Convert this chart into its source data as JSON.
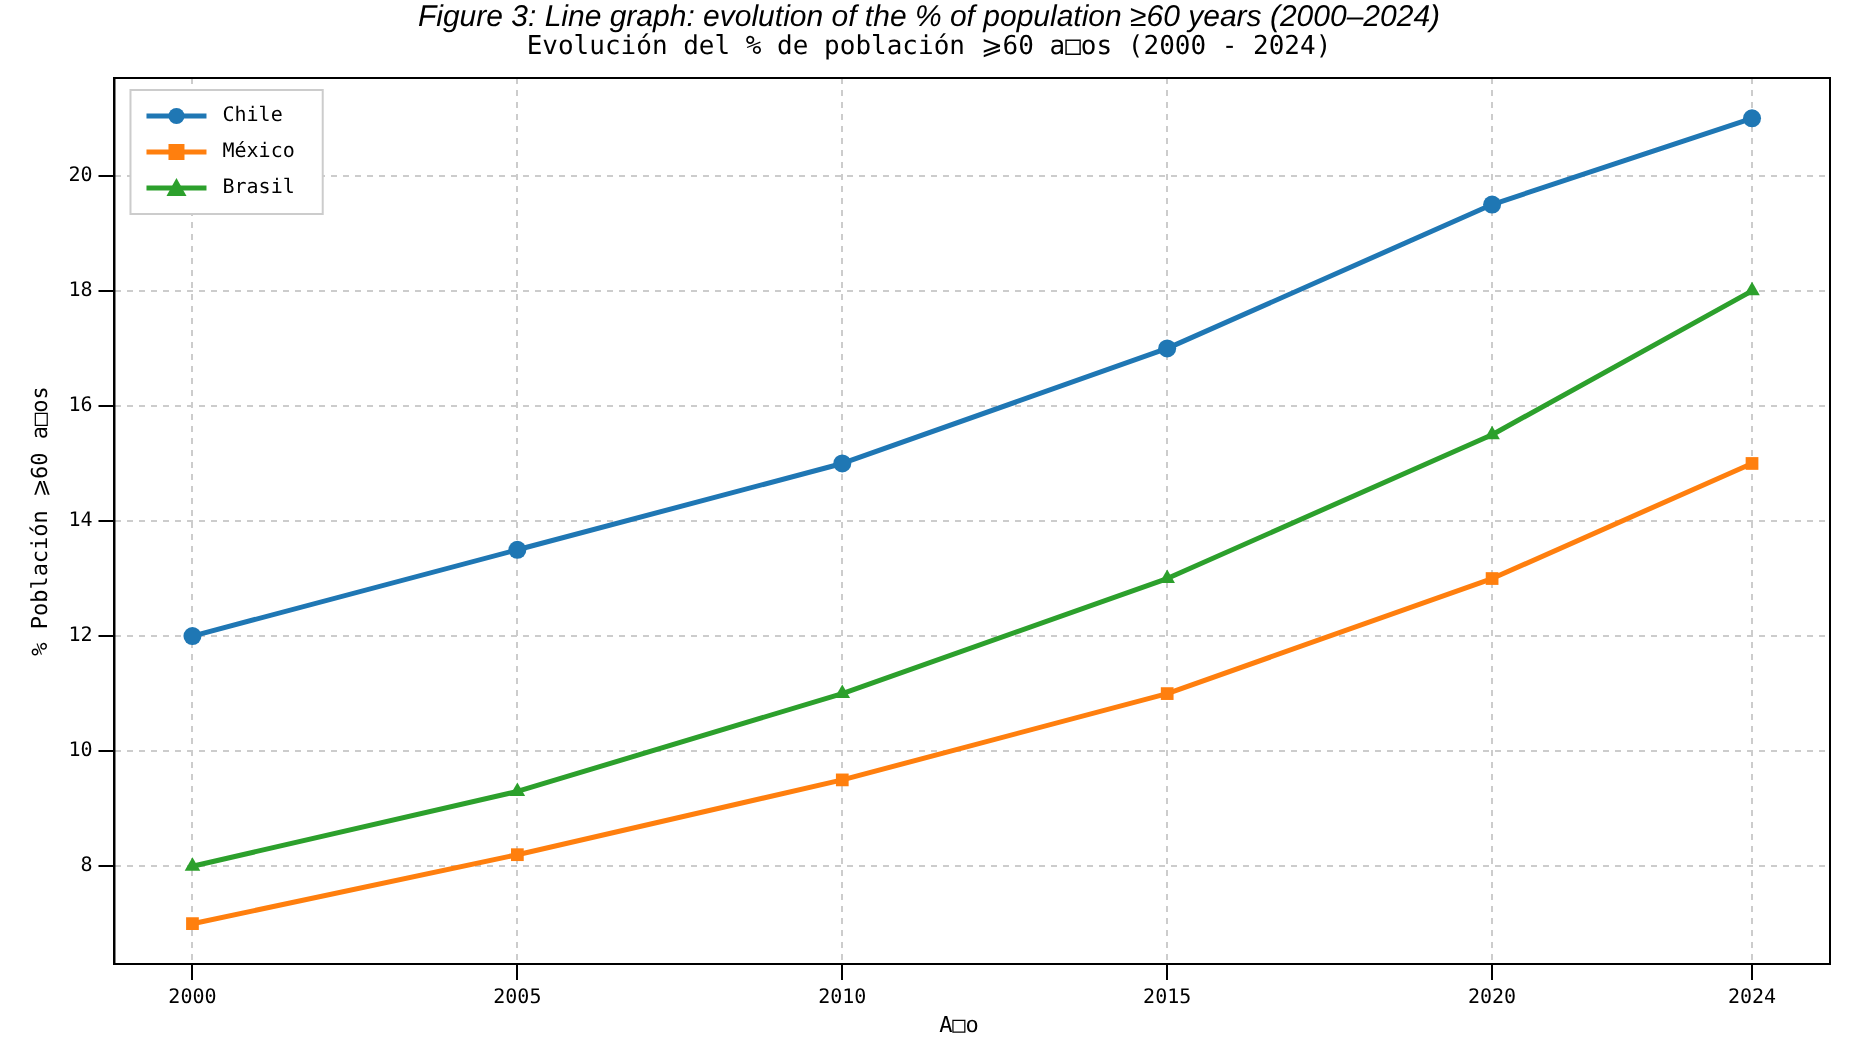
{
  "chart_data": {
    "type": "line",
    "title": "Evolución del % de población ⩾60 a□os (2000 - 2024)",
    "annotations": [
      "Figure 3: Line graph: evolution of the % of population ≥60 years (2000–2024)"
    ],
    "xlabel": "A□o",
    "ylabel": "% Población ⩾60 a□os",
    "x": [
      2000,
      2005,
      2010,
      2015,
      2020,
      2024
    ],
    "series": [
      {
        "name": "Chile",
        "color": "#1f77b4",
        "marker": "circle",
        "values": [
          12,
          13.5,
          15,
          17,
          19.5,
          21
        ]
      },
      {
        "name": "México",
        "color": "#ff7f0e",
        "marker": "square",
        "values": [
          7,
          8.2,
          9.5,
          11,
          13,
          15
        ]
      },
      {
        "name": "Brasil",
        "color": "#2ca02c",
        "marker": "triangle",
        "values": [
          8,
          9.3,
          11,
          13,
          15.5,
          18
        ]
      }
    ],
    "xlim": [
      1998.8,
      2025.2
    ],
    "xticks": [
      2000,
      2005,
      2010,
      2015,
      2020,
      2024
    ],
    "ylim": [
      6.3,
      21.7
    ],
    "yticks": [
      8,
      10,
      12,
      14,
      16,
      18,
      20
    ],
    "grid": true,
    "legend": "top left",
    "line_style": "solid"
  }
}
